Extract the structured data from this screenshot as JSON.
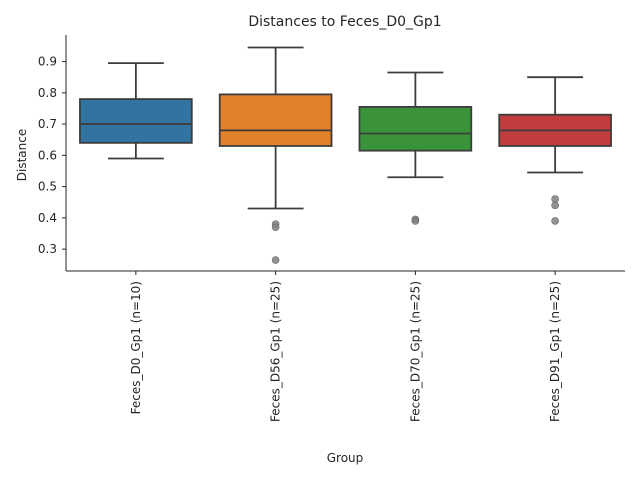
{
  "chart_data": {
    "type": "box",
    "title": "Distances to Feces_D0_Gp1",
    "xlabel": "Group",
    "ylabel": "Distance",
    "ylim": [
      0.23,
      0.985
    ],
    "yticks": [
      0.3,
      0.4,
      0.5,
      0.6,
      0.7,
      0.8,
      0.9
    ],
    "yticklabels": [
      "0.3",
      "0.4",
      "0.5",
      "0.6",
      "0.7",
      "0.8",
      "0.9"
    ],
    "grid": false,
    "categories": [
      "Feces_D0_Gp1 (n=10)",
      "Feces_D56_Gp1 (n=25)",
      "Feces_D70_Gp1 (n=25)",
      "Feces_D91_Gp1 (n=25)"
    ],
    "boxes": [
      {
        "color": "#3274a1",
        "whisker_low": 0.59,
        "q1": 0.64,
        "median": 0.7,
        "q3": 0.78,
        "whisker_high": 0.895,
        "outliers": []
      },
      {
        "color": "#e1812c",
        "whisker_low": 0.43,
        "q1": 0.63,
        "median": 0.68,
        "q3": 0.795,
        "whisker_high": 0.945,
        "outliers": [
          0.38,
          0.37,
          0.265
        ]
      },
      {
        "color": "#3a923a",
        "whisker_low": 0.53,
        "q1": 0.615,
        "median": 0.67,
        "q3": 0.755,
        "whisker_high": 0.865,
        "outliers": [
          0.395,
          0.39
        ]
      },
      {
        "color": "#c03d3e",
        "whisker_low": 0.545,
        "q1": 0.63,
        "median": 0.68,
        "q3": 0.73,
        "whisker_high": 0.85,
        "outliers": [
          0.46,
          0.44,
          0.39
        ]
      }
    ]
  }
}
